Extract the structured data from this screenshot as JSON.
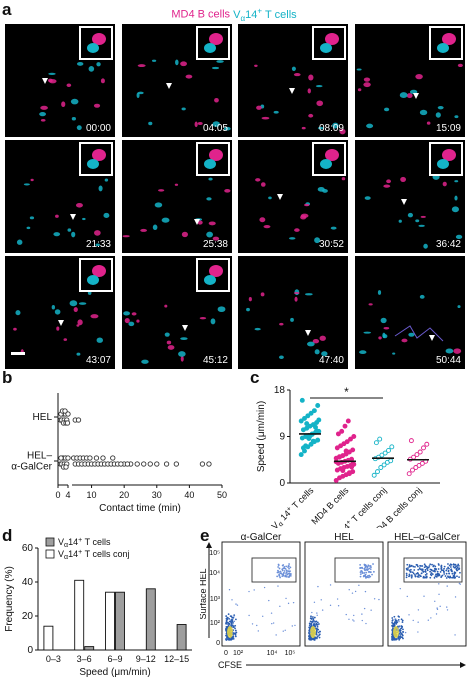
{
  "panels": {
    "a": "a",
    "b": "b",
    "c": "c",
    "d": "d",
    "e": "e"
  },
  "panel_a": {
    "legend_magenta": "MD4 B cells",
    "legend_cyan_pre": "V",
    "legend_cyan_sub": "α",
    "legend_cyan_post": "14",
    "legend_cyan_sup": "+",
    "legend_cyan_end": " T cells",
    "timestamps": [
      "00:00",
      "04:05",
      "08:09",
      "15:09",
      "21:33",
      "25:38",
      "30:52",
      "36:42",
      "43:07",
      "45:12",
      "47:40",
      "50:44"
    ],
    "colors": {
      "magenta": "#e0238c",
      "cyan": "#14b3c7"
    }
  },
  "chart_data": [
    {
      "id": "b",
      "type": "scatter",
      "categories": [
        "HEL",
        "HEL–α-GalCer"
      ],
      "category_lines": [
        [
          "HEL"
        ],
        [
          "HEL–",
          "α-GalCer"
        ]
      ],
      "xlabel": "Contact time (min)",
      "xticks": [
        "0",
        "4",
        "10",
        "20",
        "30",
        "40",
        "50"
      ],
      "xlim": [
        0,
        50
      ],
      "series": [
        {
          "values": [
            1,
            1.5,
            2,
            2.5,
            3,
            3.5,
            4,
            5,
            6,
            1.2,
            2.2,
            3.2,
            1.8,
            2.8,
            3.8
          ]
        },
        {
          "values": [
            1,
            1.5,
            2,
            2.5,
            3,
            3.5,
            4,
            5,
            6,
            7,
            8,
            9,
            10,
            11,
            12,
            13,
            14,
            15,
            16,
            17,
            18,
            20,
            22,
            24,
            26,
            28,
            30,
            33,
            36,
            44,
            46,
            1.2,
            2.2,
            3.2,
            4.5,
            5.5,
            6.5,
            7.5,
            8.5,
            9.5,
            11.5,
            13.5,
            16.5,
            19,
            21
          ]
        }
      ]
    },
    {
      "id": "c",
      "type": "scatter",
      "ylabel": "Speed (μm/min)",
      "yticks": [
        "0",
        "9",
        "18"
      ],
      "ylim": [
        0,
        18
      ],
      "categories": [
        "Vα14+ T cells",
        "MD4 B cells",
        "Vα14+ T cells conj",
        "MD4 B cells conj"
      ],
      "category_parts": [
        {
          "pre": "V",
          "sub": "α",
          "post": " 14",
          "sup": "+",
          "end": " T cells"
        },
        {
          "pre": "MD4 B cells",
          "sub": "",
          "post": "",
          "sup": "",
          "end": ""
        },
        {
          "pre": "V",
          "sub": "α",
          "post": "14",
          "sup": "+",
          "end": " T cells conj"
        },
        {
          "pre": "MD4 B cells conj",
          "sub": "",
          "post": "",
          "sup": "",
          "end": ""
        }
      ],
      "medians": [
        9.5,
        4.2,
        4.8,
        4.5
      ],
      "significance": "*",
      "series": [
        {
          "color": "#14b3c7",
          "values": [
            5.5,
            6.2,
            7,
            7.5,
            8,
            8.3,
            8.7,
            9,
            9.2,
            9.5,
            9.8,
            10,
            10.3,
            10.6,
            11,
            11.3,
            11.7,
            12,
            12.5,
            13,
            13.5,
            14,
            15,
            16,
            7.2,
            8.6,
            9.4,
            10.8,
            12.2,
            6.8,
            11.5,
            9.1,
            8.1,
            10.1
          ]
        },
        {
          "color": "#e0238c",
          "values": [
            0.5,
            1,
            1.3,
            1.6,
            2,
            2.2,
            2.5,
            2.8,
            3,
            3.2,
            3.4,
            3.6,
            3.8,
            4,
            4.2,
            4.4,
            4.6,
            4.8,
            5,
            5.3,
            5.6,
            6,
            6.4,
            6.8,
            7.2,
            7.6,
            8,
            8.5,
            9,
            9.5,
            10,
            11,
            12,
            3.1,
            4.1,
            5.1,
            2.4,
            6.2,
            1.8,
            3.7
          ]
        },
        {
          "color": "#14b3c7",
          "values": [
            1.5,
            2.2,
            3,
            3.5,
            4,
            4.3,
            4.7,
            5,
            5.4,
            5.8,
            6.3,
            7,
            7.8,
            8.5
          ]
        },
        {
          "color": "#e0238c",
          "values": [
            1.8,
            2.5,
            3,
            3.4,
            3.8,
            4.2,
            4.6,
            5,
            5.5,
            6,
            6.8,
            7.5,
            8.2
          ]
        }
      ]
    },
    {
      "id": "d",
      "type": "bar",
      "ylabel": "Frequency (%)",
      "xlabel": "Speed (μm/min)",
      "yticks": [
        "0",
        "20",
        "40",
        "60"
      ],
      "ylim": [
        0,
        60
      ],
      "categories": [
        "0–3",
        "3–6",
        "6–9",
        "9–12",
        "12–15"
      ],
      "series": [
        {
          "name_pre": "V",
          "name_sub": "α",
          "name_post": "14",
          "name_sup": "+",
          "name_end": " T cells",
          "color": "#9e9e9e",
          "values": [
            0,
            2,
            34,
            36,
            15
          ]
        },
        {
          "name_pre": "V",
          "name_sub": "α",
          "name_post": "14",
          "name_sup": "+",
          "name_end": " T cells conj",
          "color": "#ffffff",
          "values": [
            14,
            41,
            34,
            0,
            0
          ]
        }
      ]
    }
  ],
  "panel_e": {
    "titles": [
      "α-GalCer",
      "HEL",
      "HEL–α-GalCer"
    ],
    "ylabel": "Surface HEL",
    "xlabel": "CFSE",
    "yticks": [
      "10⁵",
      "10⁴",
      "10³",
      "10²",
      "0"
    ],
    "xticks": [
      "0",
      "10²",
      "10⁴",
      "10⁵"
    ],
    "colors": {
      "dense": "#2a5db0",
      "sparse": "#6b8fd8",
      "hot": "#f7e23b"
    }
  }
}
